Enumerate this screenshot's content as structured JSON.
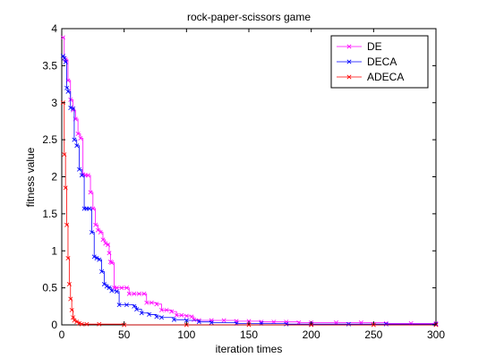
{
  "chart_data": {
    "type": "line",
    "title": "rock-paper-scissors game",
    "xlabel": "iteration times",
    "ylabel": "fitness value",
    "xlim": [
      0,
      300
    ],
    "ylim": [
      0,
      4
    ],
    "xticks": [
      "0",
      "50",
      "100",
      "150",
      "200",
      "250",
      "300"
    ],
    "yticks": [
      "0",
      "0.5",
      "1",
      "1.5",
      "2",
      "2.5",
      "3",
      "3.5",
      "4"
    ],
    "grid": false,
    "legend_position": "top-right",
    "series": [
      {
        "name": "DE",
        "color": "#ff00ff",
        "marker": "x",
        "points": [
          [
            1,
            3.88
          ],
          [
            2,
            3.6
          ],
          [
            3,
            3.58
          ],
          [
            5,
            3.3
          ],
          [
            7,
            3.04
          ],
          [
            9,
            2.9
          ],
          [
            11,
            2.78
          ],
          [
            13,
            2.58
          ],
          [
            15,
            2.52
          ],
          [
            17,
            2.03
          ],
          [
            19,
            2.02
          ],
          [
            21,
            2.02
          ],
          [
            23,
            1.79
          ],
          [
            25,
            1.57
          ],
          [
            27,
            1.35
          ],
          [
            29,
            1.28
          ],
          [
            31,
            1.25
          ],
          [
            33,
            1.15
          ],
          [
            35,
            1.1
          ],
          [
            37,
            1.08
          ],
          [
            38,
            0.97
          ],
          [
            39,
            0.85
          ],
          [
            40,
            0.84
          ],
          [
            42,
            0.5
          ],
          [
            44,
            0.5
          ],
          [
            48,
            0.5
          ],
          [
            52,
            0.5
          ],
          [
            54,
            0.42
          ],
          [
            58,
            0.42
          ],
          [
            62,
            0.42
          ],
          [
            66,
            0.42
          ],
          [
            68,
            0.3
          ],
          [
            72,
            0.3
          ],
          [
            76,
            0.28
          ],
          [
            80,
            0.2
          ],
          [
            84,
            0.2
          ],
          [
            88,
            0.18
          ],
          [
            92,
            0.13
          ],
          [
            96,
            0.13
          ],
          [
            100,
            0.12
          ],
          [
            104,
            0.11
          ],
          [
            106,
            0.07
          ],
          [
            110,
            0.06
          ],
          [
            120,
            0.06
          ],
          [
            130,
            0.06
          ],
          [
            140,
            0.05
          ],
          [
            150,
            0.05
          ],
          [
            160,
            0.04
          ],
          [
            170,
            0.04
          ],
          [
            180,
            0.04
          ],
          [
            190,
            0.03
          ],
          [
            200,
            0.03
          ],
          [
            220,
            0.03
          ],
          [
            240,
            0.03
          ],
          [
            260,
            0.02
          ],
          [
            280,
            0.02
          ],
          [
            300,
            0.02
          ]
        ]
      },
      {
        "name": "DECA",
        "color": "#0000ff",
        "marker": "x",
        "points": [
          [
            1,
            3.63
          ],
          [
            2,
            3.6
          ],
          [
            3,
            3.55
          ],
          [
            4,
            3.2
          ],
          [
            5,
            3.15
          ],
          [
            7,
            2.93
          ],
          [
            9,
            2.92
          ],
          [
            10,
            2.5
          ],
          [
            12,
            2.42
          ],
          [
            14,
            2.1
          ],
          [
            16,
            2.02
          ],
          [
            18,
            1.57
          ],
          [
            20,
            1.57
          ],
          [
            22,
            1.57
          ],
          [
            24,
            1.25
          ],
          [
            26,
            0.92
          ],
          [
            28,
            0.9
          ],
          [
            30,
            0.88
          ],
          [
            32,
            0.72
          ],
          [
            34,
            0.55
          ],
          [
            36,
            0.52
          ],
          [
            38,
            0.5
          ],
          [
            40,
            0.46
          ],
          [
            44,
            0.45
          ],
          [
            46,
            0.27
          ],
          [
            52,
            0.27
          ],
          [
            58,
            0.25
          ],
          [
            60,
            0.21
          ],
          [
            64,
            0.16
          ],
          [
            70,
            0.14
          ],
          [
            76,
            0.11
          ],
          [
            80,
            0.1
          ],
          [
            90,
            0.07
          ],
          [
            100,
            0.06
          ],
          [
            110,
            0.04
          ],
          [
            120,
            0.03
          ],
          [
            140,
            0.02
          ],
          [
            160,
            0.02
          ],
          [
            180,
            0.01
          ],
          [
            200,
            0.01
          ],
          [
            230,
            0.01
          ],
          [
            260,
            0.01
          ],
          [
            300,
            0.01
          ]
        ]
      },
      {
        "name": "ADECA",
        "color": "#ff0000",
        "marker": "x",
        "points": [
          [
            1,
            3.0
          ],
          [
            2,
            2.3
          ],
          [
            3,
            1.85
          ],
          [
            4,
            1.35
          ],
          [
            5,
            0.9
          ],
          [
            6,
            0.55
          ],
          [
            7,
            0.35
          ],
          [
            8,
            0.2
          ],
          [
            9,
            0.1
          ],
          [
            10,
            0.06
          ],
          [
            12,
            0.04
          ],
          [
            14,
            0.02
          ],
          [
            16,
            0.01
          ],
          [
            20,
            0.01
          ],
          [
            30,
            0.01
          ],
          [
            50,
            0.0
          ],
          [
            100,
            0.0
          ],
          [
            150,
            0.0
          ],
          [
            200,
            0.0
          ],
          [
            250,
            0.0
          ],
          [
            300,
            0.0
          ]
        ]
      }
    ]
  }
}
